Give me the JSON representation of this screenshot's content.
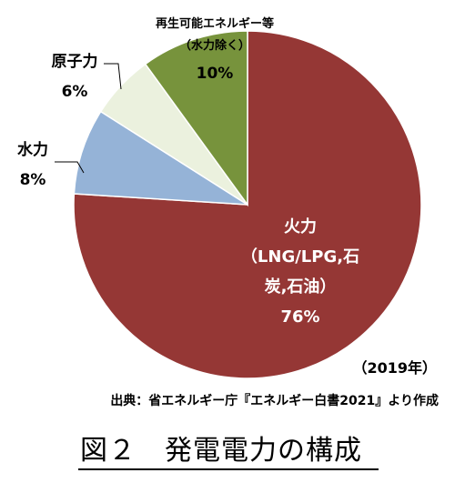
{
  "chart_data": {
    "type": "pie",
    "slices": [
      {
        "name": "火力",
        "label_lines": [
          "火力",
          "（LNG/LPG,石",
          "炭,石油）",
          "76%"
        ],
        "value": 76,
        "color": "#953735"
      },
      {
        "name": "水力",
        "label_lines": [
          "水力",
          "8%"
        ],
        "value": 8,
        "color": "#95b3d7"
      },
      {
        "name": "原子力",
        "label_lines": [
          "原子力",
          "6%"
        ],
        "value": 6,
        "color": "#ebf1de"
      },
      {
        "name": "再生可能エネルギー等",
        "label_lines": [
          "再生可能エネルギー等",
          "（水力除く）",
          "10%"
        ],
        "value": 10,
        "color": "#77933c"
      }
    ],
    "start_angle_deg": 0,
    "direction": "clockwise",
    "year_note": "（2019年）",
    "source": "出典：省エネルギー庁『エネルギー白書2021』より作成"
  },
  "caption": "図２　発電電力の構成"
}
